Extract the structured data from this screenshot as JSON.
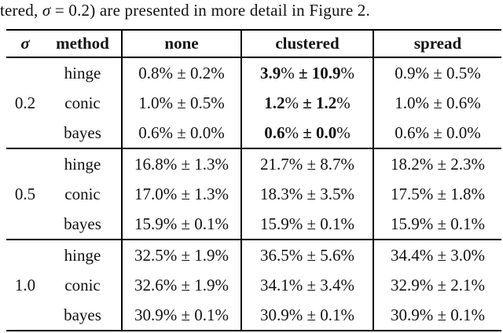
{
  "page": {
    "intro_parts": [
      {
        "t": "tered, "
      },
      {
        "t": "σ",
        "i": true
      },
      {
        "t": " = 0.2) are presented in more detail in Figure 2."
      }
    ]
  },
  "table": {
    "headers": {
      "sigma": "σ",
      "method": "method",
      "none": "none",
      "clustered": "clustered",
      "spread": "spread"
    },
    "groups": [
      {
        "sigma": "0.2",
        "rows": [
          {
            "method": "hinge",
            "none": "0.8% ± 0.2%",
            "clustered_parts": [
              {
                "t": "3.9",
                "b": true
              },
              {
                "t": "% "
              },
              {
                "t": "±",
                "b": true
              },
              {
                "t": " "
              },
              {
                "t": "10.9",
                "b": true
              },
              {
                "t": "%"
              }
            ],
            "spread": "0.9% ± 0.5%"
          },
          {
            "method": "conic",
            "none": "1.0% ± 0.5%",
            "clustered_parts": [
              {
                "t": "1.2",
                "b": true
              },
              {
                "t": "% "
              },
              {
                "t": "±",
                "b": true
              },
              {
                "t": " "
              },
              {
                "t": "1.2",
                "b": true
              },
              {
                "t": "%"
              }
            ],
            "spread": "1.0% ± 0.6%"
          },
          {
            "method": "bayes",
            "none": "0.6% ± 0.0%",
            "clustered_parts": [
              {
                "t": "0.6",
                "b": true
              },
              {
                "t": "% "
              },
              {
                "t": "±",
                "b": true
              },
              {
                "t": " "
              },
              {
                "t": "0.0",
                "b": true
              },
              {
                "t": "%"
              }
            ],
            "spread": "0.6% ± 0.0%"
          }
        ]
      },
      {
        "sigma": "0.5",
        "rows": [
          {
            "method": "hinge",
            "none": "16.8% ± 1.3%",
            "clustered_parts": [
              {
                "t": "21.7% ± 8.7%"
              }
            ],
            "spread": "18.2% ± 2.3%"
          },
          {
            "method": "conic",
            "none": "17.0% ± 1.3%",
            "clustered_parts": [
              {
                "t": "18.3% ± 3.5%"
              }
            ],
            "spread": "17.5% ± 1.8%"
          },
          {
            "method": "bayes",
            "none": "15.9% ± 0.1%",
            "clustered_parts": [
              {
                "t": "15.9% ± 0.1%"
              }
            ],
            "spread": "15.9% ± 0.1%"
          }
        ]
      },
      {
        "sigma": "1.0",
        "rows": [
          {
            "method": "hinge",
            "none": "32.5% ± 1.9%",
            "clustered_parts": [
              {
                "t": "36.5% ± 5.6%"
              }
            ],
            "spread": "34.4% ± 3.0%"
          },
          {
            "method": "conic",
            "none": "32.6% ± 1.9%",
            "clustered_parts": [
              {
                "t": "34.1% ± 3.4%"
              }
            ],
            "spread": "32.9% ± 2.1%"
          },
          {
            "method": "bayes",
            "none": "30.9% ± 0.1%",
            "clustered_parts": [
              {
                "t": "30.9% ± 0.1%"
              }
            ],
            "spread": "30.9% ± 0.1%"
          }
        ]
      }
    ]
  }
}
